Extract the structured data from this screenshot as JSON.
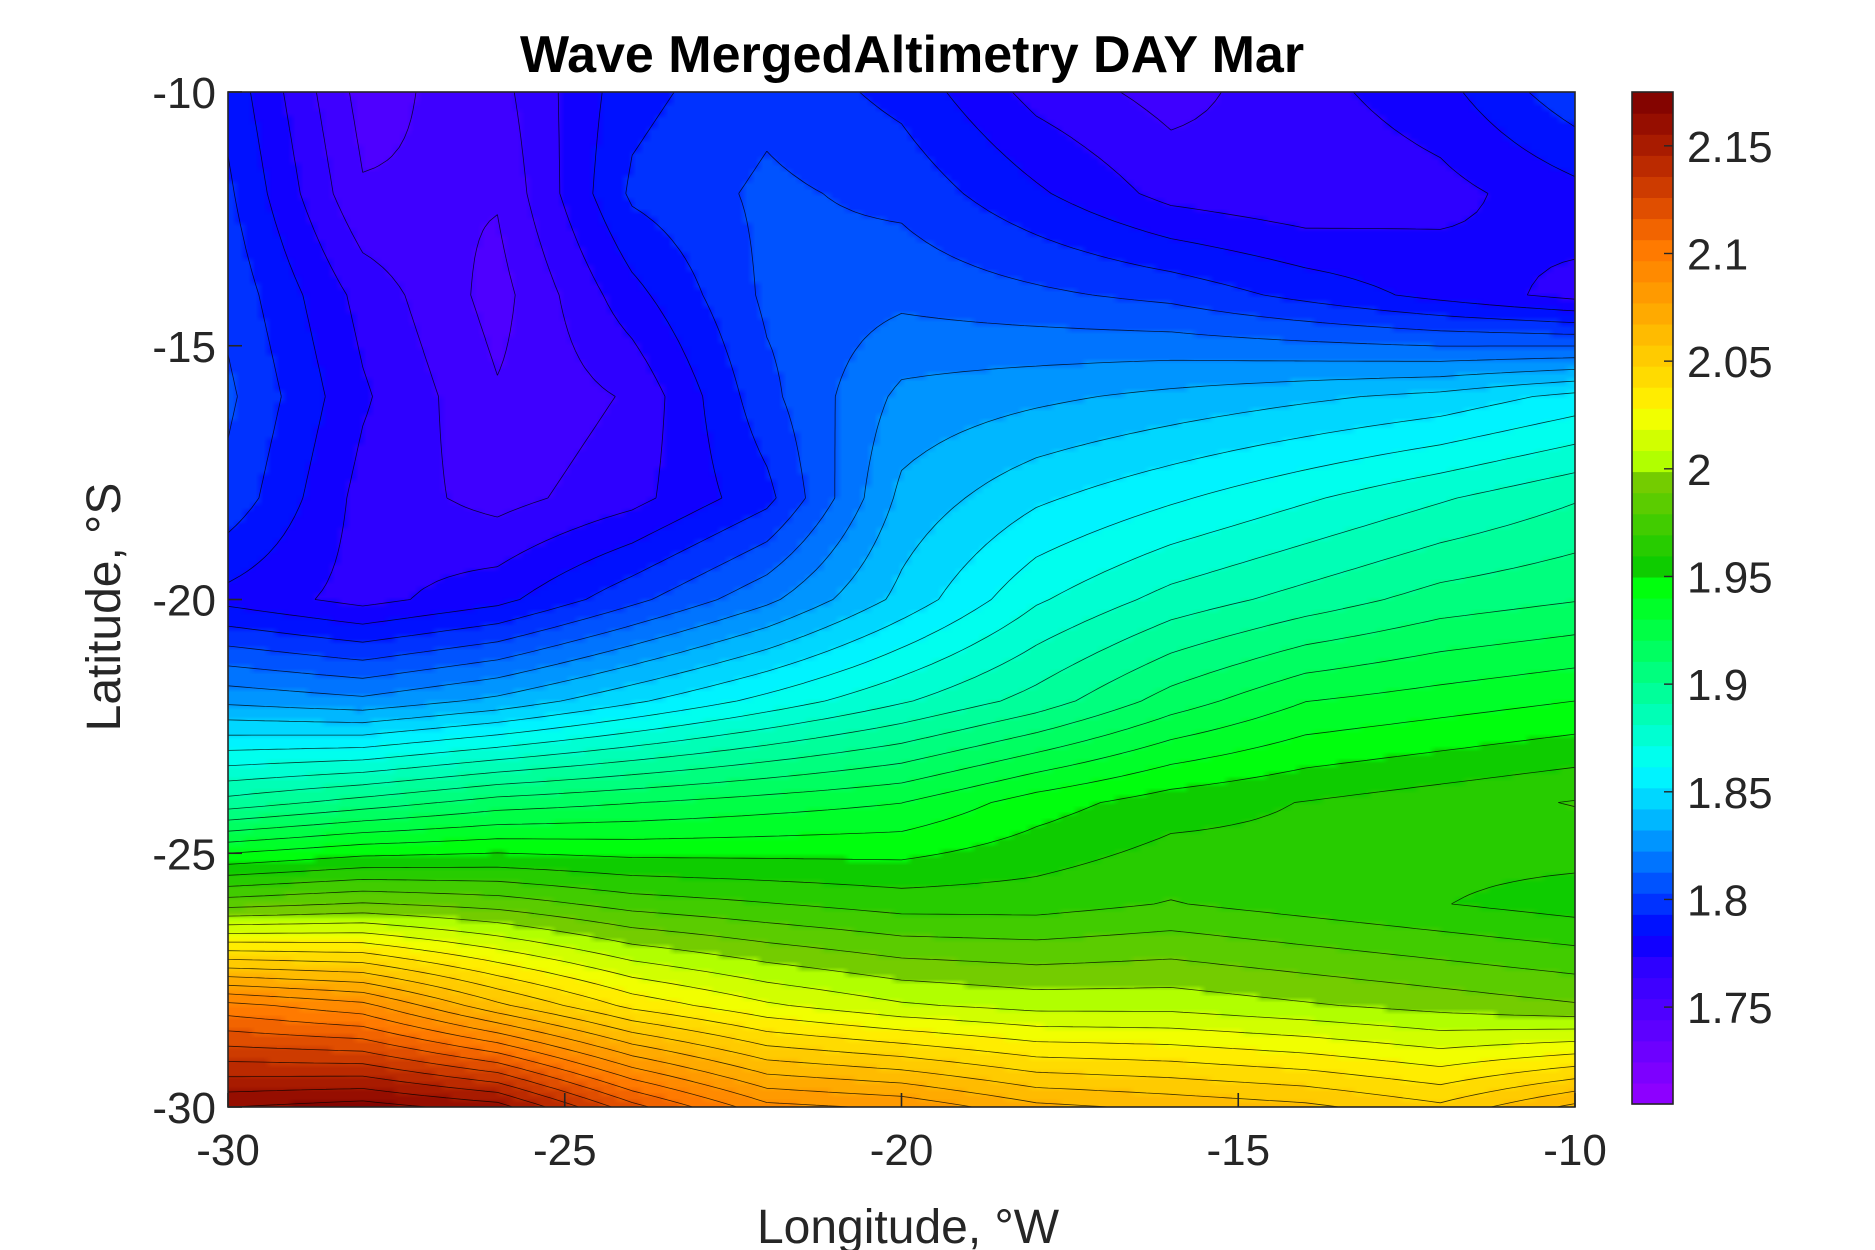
{
  "chart_data": {
    "type": "heatmap",
    "subtype": "filled-contour",
    "title": "Wave MergedAltimetry DAY Mar",
    "xlabel": "Longitude, °W",
    "ylabel": "Latitude, °S",
    "xlim": [
      -30,
      -10
    ],
    "ylim": [
      -30,
      -10
    ],
    "xticks": [
      "-30",
      "-25",
      "-20",
      "-15",
      "-10"
    ],
    "yticks": [
      "-10",
      "-15",
      "-20",
      "-25",
      "-30"
    ],
    "colorbar": {
      "limits": [
        1.705,
        2.175
      ],
      "ticks": [
        "1.75",
        "1.8",
        "1.85",
        "1.9",
        "1.95",
        "2",
        "2.05",
        "2.1",
        "2.15"
      ],
      "colormap": "hsv-reversed",
      "levels": 48
    },
    "x": [
      -30,
      -28,
      -26,
      -24,
      -22,
      -20,
      -18,
      -16,
      -14,
      -12,
      -10
    ],
    "y": [
      -10,
      -12,
      -14,
      -16,
      -18,
      -20,
      -22,
      -24,
      -26,
      -28,
      -30
    ],
    "z": [
      [
        1.79,
        1.75,
        1.76,
        1.79,
        1.8,
        1.79,
        1.77,
        1.76,
        1.77,
        1.78,
        1.8
      ],
      [
        1.795,
        1.755,
        1.755,
        1.795,
        1.805,
        1.8,
        1.785,
        1.77,
        1.765,
        1.77,
        1.78
      ],
      [
        1.8,
        1.77,
        1.75,
        1.78,
        1.805,
        1.81,
        1.805,
        1.8,
        1.79,
        1.78,
        1.77
      ],
      [
        1.805,
        1.775,
        1.755,
        1.765,
        1.8,
        1.825,
        1.83,
        1.835,
        1.84,
        1.845,
        1.855
      ],
      [
        1.8,
        1.77,
        1.76,
        1.77,
        1.79,
        1.835,
        1.85,
        1.86,
        1.87,
        1.88,
        1.89
      ],
      [
        1.78,
        1.77,
        1.78,
        1.8,
        1.82,
        1.845,
        1.87,
        1.885,
        1.895,
        1.905,
        1.91
      ],
      [
        1.83,
        1.825,
        1.835,
        1.85,
        1.865,
        1.88,
        1.895,
        1.915,
        1.93,
        1.935,
        1.94
      ],
      [
        1.895,
        1.905,
        1.915,
        1.92,
        1.925,
        1.93,
        1.945,
        1.955,
        1.96,
        1.965,
        1.97
      ],
      [
        1.985,
        1.99,
        1.985,
        1.975,
        1.97,
        1.965,
        1.965,
        1.97,
        1.965,
        1.96,
        1.955
      ],
      [
        2.1,
        2.09,
        2.06,
        2.035,
        2.02,
        2.01,
        2.005,
        2.005,
        2.0,
        1.995,
        1.99
      ],
      [
        2.165,
        2.17,
        2.16,
        2.12,
        2.09,
        2.085,
        2.07,
        2.065,
        2.06,
        2.05,
        2.07
      ]
    ]
  }
}
